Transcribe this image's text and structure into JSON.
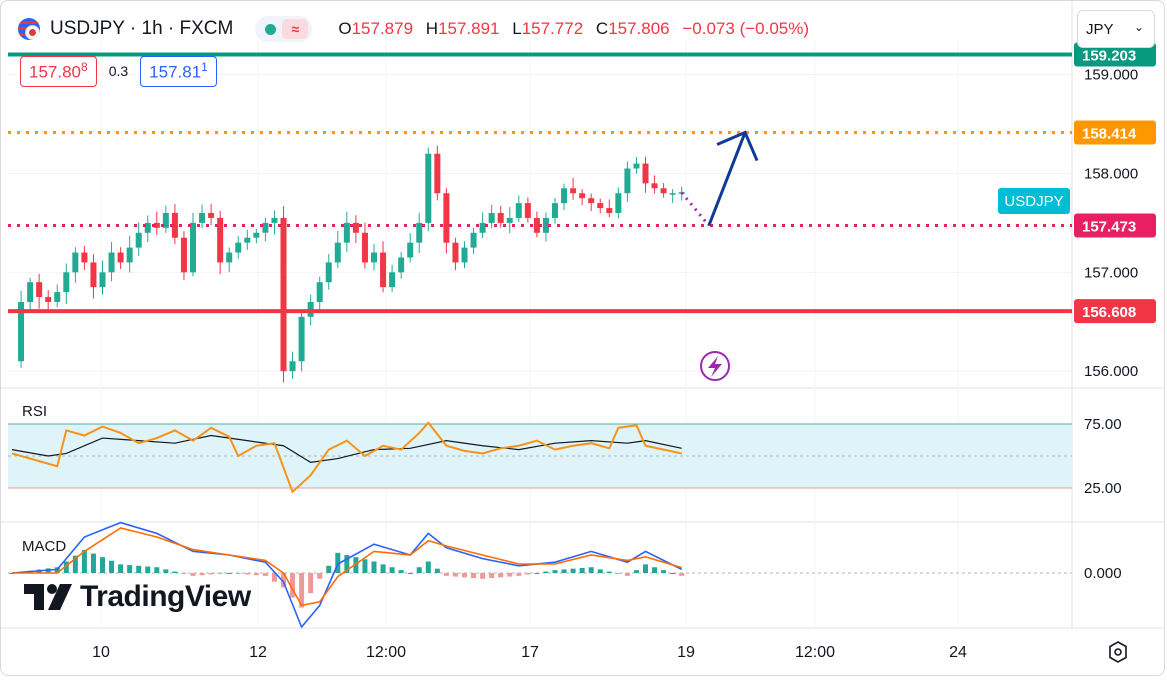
{
  "header": {
    "symbol_title": "USDJPY · 1h · FXCM",
    "open_label": "O",
    "open": "157.879",
    "high_label": "H",
    "high": "157.891",
    "low_label": "L",
    "low": "157.772",
    "close_label": "C",
    "close": "157.806",
    "change": "−0.073 (−0.05%)"
  },
  "quote": {
    "bid_main": "157.80",
    "bid_sup": "8",
    "spread": "0.3",
    "ask_main": "157.81",
    "ask_sup": "1"
  },
  "currency_selector": {
    "value": "JPY"
  },
  "branding": {
    "logo_text": "TradingView"
  },
  "colors": {
    "up": "#22ab94",
    "down": "#f23645",
    "teal_line": "#089981",
    "orange": "#ff9800",
    "pink": "#e91e63",
    "red_line": "#f23645",
    "arrow": "#0d3c97",
    "rsi": "#f7931a",
    "rsi_band": "#dff4f9",
    "macd": "#2962ff",
    "signal": "#ff6d00",
    "symbol_tag": "#00bcd4",
    "purple": "#9c27b0"
  },
  "icons": [
    "flag-usd-jpy-icon",
    "lightning-icon",
    "settings-icon",
    "chevron-down-icon"
  ],
  "chart_data": [
    {
      "type": "candlestick",
      "symbol": "USDJPY",
      "timeframe": "1h",
      "ylim": [
        155.85,
        159.35
      ],
      "y_ticks": [
        "159.000",
        "158.000",
        "157.000",
        "156.000"
      ],
      "x_ticks": [
        "10",
        "12",
        "12:00",
        "17",
        "19",
        "12:00",
        "24"
      ],
      "symbol_tag": "USDJPY",
      "levels": [
        {
          "label": "159.203",
          "value": 159.203,
          "style": "solid",
          "color": "#089981"
        },
        {
          "label": "158.414",
          "value": 158.414,
          "style": "dotted",
          "color": "#ff9800"
        },
        {
          "label": "157.473",
          "value": 157.473,
          "style": "dotted",
          "color": "#e91e63"
        },
        {
          "label": "156.608",
          "value": 156.608,
          "style": "solid",
          "color": "#f23645"
        }
      ],
      "close_path": [
        [
          0,
          156.1
        ],
        [
          1,
          156.7
        ],
        [
          2,
          156.9
        ],
        [
          3,
          156.75
        ],
        [
          4,
          156.7
        ],
        [
          5,
          156.8
        ],
        [
          6,
          157.0
        ],
        [
          7,
          157.2
        ],
        [
          8,
          157.1
        ],
        [
          9,
          156.85
        ],
        [
          10,
          157.0
        ],
        [
          11,
          157.2
        ],
        [
          12,
          157.1
        ],
        [
          13,
          157.25
        ],
        [
          14,
          157.4
        ],
        [
          15,
          157.5
        ],
        [
          16,
          157.45
        ],
        [
          17,
          157.6
        ],
        [
          18,
          157.35
        ],
        [
          19,
          157.0
        ],
        [
          20,
          157.5
        ],
        [
          21,
          157.6
        ],
        [
          22,
          157.55
        ],
        [
          23,
          157.1
        ],
        [
          24,
          157.2
        ],
        [
          25,
          157.3
        ],
        [
          26,
          157.35
        ],
        [
          27,
          157.4
        ],
        [
          28,
          157.5
        ],
        [
          29,
          157.55
        ],
        [
          30,
          156.0
        ],
        [
          31,
          156.1
        ],
        [
          32,
          156.55
        ],
        [
          33,
          156.7
        ],
        [
          34,
          156.9
        ],
        [
          35,
          157.1
        ],
        [
          36,
          157.3
        ],
        [
          37,
          157.5
        ],
        [
          38,
          157.4
        ],
        [
          39,
          157.1
        ],
        [
          40,
          157.2
        ],
        [
          41,
          156.85
        ],
        [
          42,
          157.0
        ],
        [
          43,
          157.15
        ],
        [
          44,
          157.3
        ],
        [
          45,
          157.5
        ],
        [
          46,
          158.2
        ],
        [
          47,
          157.8
        ],
        [
          48,
          157.3
        ],
        [
          49,
          157.1
        ],
        [
          50,
          157.25
        ],
        [
          51,
          157.4
        ],
        [
          52,
          157.5
        ],
        [
          53,
          157.6
        ],
        [
          54,
          157.5
        ],
        [
          55,
          157.55
        ],
        [
          56,
          157.7
        ],
        [
          57,
          157.55
        ],
        [
          58,
          157.4
        ],
        [
          59,
          157.55
        ],
        [
          60,
          157.7
        ],
        [
          61,
          157.85
        ],
        [
          62,
          157.8
        ],
        [
          63,
          157.75
        ],
        [
          64,
          157.7
        ],
        [
          65,
          157.65
        ],
        [
          66,
          157.6
        ],
        [
          67,
          157.8
        ],
        [
          68,
          158.05
        ],
        [
          69,
          158.1
        ],
        [
          70,
          157.9
        ],
        [
          71,
          157.85
        ],
        [
          72,
          157.8
        ],
        [
          73,
          157.8
        ],
        [
          74,
          157.81
        ]
      ],
      "projection": [
        [
          74,
          157.806
        ],
        [
          77,
          157.473
        ],
        [
          81,
          158.414
        ]
      ]
    },
    {
      "type": "line",
      "name": "RSI",
      "ylim": [
        0,
        100
      ],
      "y_ticks": [
        "75.00",
        "25.00"
      ],
      "band": [
        25,
        75
      ],
      "series_rsi": [
        [
          0,
          52
        ],
        [
          3,
          46
        ],
        [
          5,
          42
        ],
        [
          6,
          70
        ],
        [
          8,
          66
        ],
        [
          10,
          73
        ],
        [
          12,
          68
        ],
        [
          14,
          60
        ],
        [
          16,
          64
        ],
        [
          18,
          70
        ],
        [
          20,
          62
        ],
        [
          22,
          72
        ],
        [
          24,
          65
        ],
        [
          25,
          50
        ],
        [
          27,
          58
        ],
        [
          29,
          60
        ],
        [
          31,
          22
        ],
        [
          33,
          35
        ],
        [
          35,
          55
        ],
        [
          37,
          62
        ],
        [
          39,
          50
        ],
        [
          41,
          58
        ],
        [
          43,
          55
        ],
        [
          45,
          68
        ],
        [
          46,
          76
        ],
        [
          48,
          58
        ],
        [
          50,
          54
        ],
        [
          52,
          52
        ],
        [
          54,
          56
        ],
        [
          56,
          58
        ],
        [
          58,
          62
        ],
        [
          60,
          55
        ],
        [
          62,
          58
        ],
        [
          64,
          60
        ],
        [
          66,
          56
        ],
        [
          67,
          72
        ],
        [
          69,
          74
        ],
        [
          70,
          58
        ],
        [
          72,
          55
        ],
        [
          74,
          52
        ]
      ],
      "series_ma": [
        [
          0,
          55
        ],
        [
          4,
          50
        ],
        [
          6,
          52
        ],
        [
          10,
          64
        ],
        [
          14,
          62
        ],
        [
          18,
          60
        ],
        [
          22,
          66
        ],
        [
          26,
          62
        ],
        [
          30,
          58
        ],
        [
          33,
          45
        ],
        [
          36,
          48
        ],
        [
          40,
          55
        ],
        [
          44,
          56
        ],
        [
          48,
          62
        ],
        [
          52,
          58
        ],
        [
          56,
          55
        ],
        [
          60,
          60
        ],
        [
          64,
          62
        ],
        [
          68,
          60
        ],
        [
          70,
          62
        ],
        [
          74,
          56
        ]
      ]
    },
    {
      "type": "line",
      "name": "MACD",
      "ylim": [
        -0.5,
        0.5
      ],
      "y_ticks": [
        "0.000"
      ],
      "series_macd": [
        [
          0,
          0.0
        ],
        [
          5,
          0.02
        ],
        [
          8,
          0.2
        ],
        [
          12,
          0.28
        ],
        [
          16,
          0.22
        ],
        [
          20,
          0.12
        ],
        [
          24,
          0.1
        ],
        [
          28,
          0.06
        ],
        [
          30,
          -0.05
        ],
        [
          32,
          -0.3
        ],
        [
          34,
          -0.18
        ],
        [
          36,
          0.05
        ],
        [
          40,
          0.16
        ],
        [
          44,
          0.1
        ],
        [
          46,
          0.22
        ],
        [
          48,
          0.14
        ],
        [
          52,
          0.08
        ],
        [
          56,
          0.04
        ],
        [
          60,
          0.06
        ],
        [
          64,
          0.12
        ],
        [
          68,
          0.06
        ],
        [
          70,
          0.12
        ],
        [
          74,
          0.02
        ]
      ],
      "series_signal": [
        [
          0,
          0.0
        ],
        [
          5,
          0.0
        ],
        [
          8,
          0.12
        ],
        [
          12,
          0.25
        ],
        [
          16,
          0.2
        ],
        [
          20,
          0.13
        ],
        [
          24,
          0.1
        ],
        [
          28,
          0.07
        ],
        [
          30,
          0.0
        ],
        [
          32,
          -0.18
        ],
        [
          34,
          -0.16
        ],
        [
          36,
          -0.02
        ],
        [
          40,
          0.12
        ],
        [
          44,
          0.1
        ],
        [
          46,
          0.18
        ],
        [
          48,
          0.15
        ],
        [
          52,
          0.1
        ],
        [
          56,
          0.05
        ],
        [
          60,
          0.05
        ],
        [
          64,
          0.1
        ],
        [
          68,
          0.07
        ],
        [
          70,
          0.09
        ],
        [
          74,
          0.03
        ]
      ],
      "legend": "MACD"
    }
  ]
}
